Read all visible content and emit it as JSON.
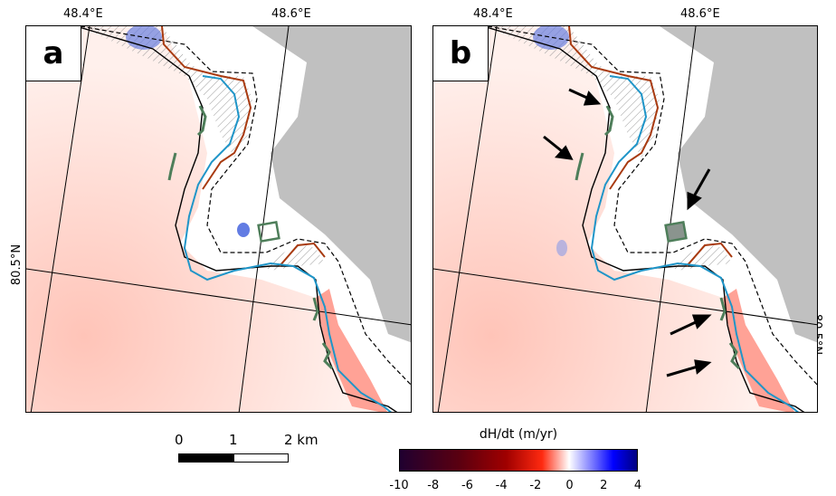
{
  "panels": [
    {
      "label": "a",
      "lon_labels": [
        "48.4°E",
        "48.6°E"
      ],
      "lat_label": "80.5°N"
    },
    {
      "label": "b",
      "lon_labels": [
        "48.4°E",
        "48.6°E"
      ],
      "lat_label": "80.5°N"
    }
  ],
  "scale_bar": {
    "labels": [
      "0",
      "1",
      "2 km"
    ]
  },
  "colorbar": {
    "title": "dH/dt (m/yr)",
    "ticks": [
      "-10",
      "-8",
      "-6",
      "-4",
      "-2",
      "0",
      "2",
      "4"
    ],
    "colors": [
      "#200030",
      "#5a0010",
      "#a00000",
      "#ff2a10",
      "#ffffff",
      "#0000ff",
      "#000080"
    ]
  }
}
